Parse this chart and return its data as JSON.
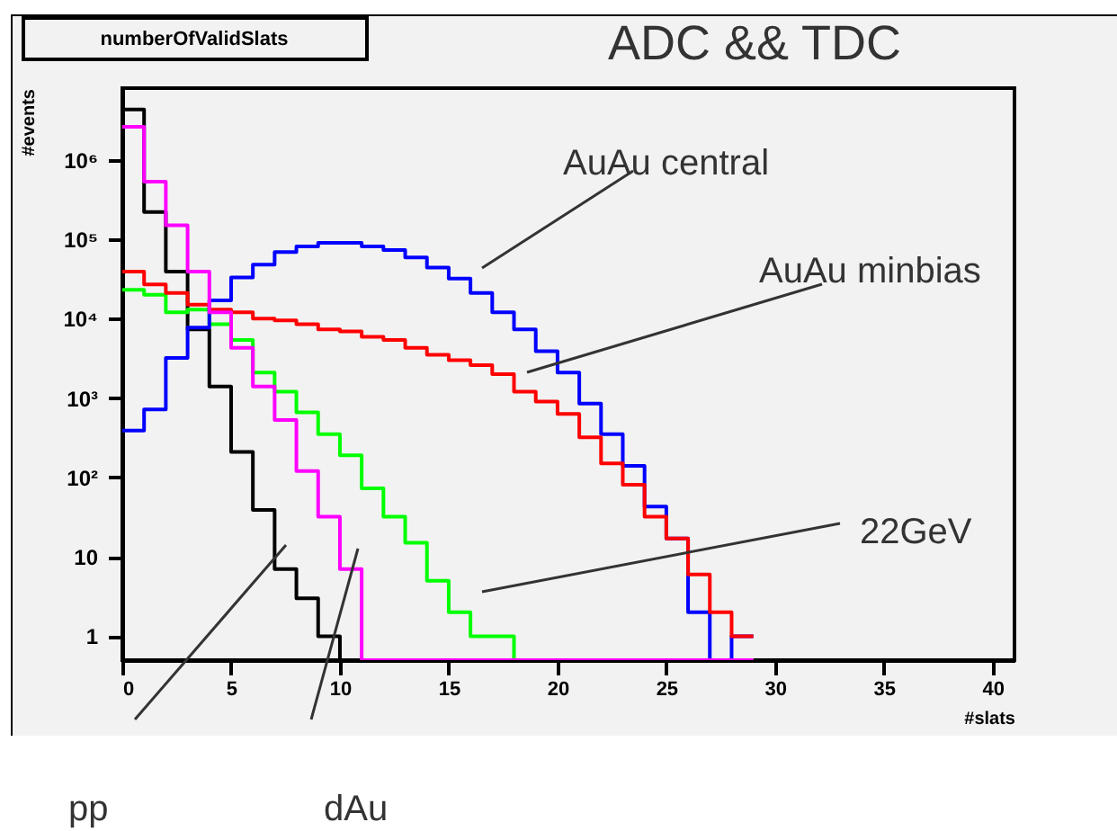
{
  "chart_data": {
    "type": "histogram",
    "title": "numberOfValidSlats",
    "subtitle": "ADC && TDC",
    "xlabel": "#slats",
    "ylabel": "#events",
    "bins": [
      0,
      1,
      2,
      3,
      4,
      5,
      6,
      7,
      8,
      9,
      10,
      11,
      12,
      13,
      14,
      15,
      16,
      17,
      18,
      19,
      20,
      21,
      22,
      23,
      24,
      25,
      26,
      27,
      28,
      29
    ],
    "series": [
      {
        "color": "#000000",
        "values": [
          4300000,
          220000,
          39000,
          7300,
          1400,
          210,
          39,
          7,
          3,
          1,
          null,
          null,
          null,
          null,
          null,
          null,
          null,
          null,
          null,
          null,
          null,
          null,
          null,
          null,
          null,
          null,
          null,
          null,
          null
        ]
      },
      {
        "color": "#00ff00",
        "values": [
          23000,
          20000,
          12000,
          13000,
          8500,
          5400,
          2100,
          1200,
          660,
          350,
          190,
          73,
          32,
          15,
          5,
          2,
          1,
          1,
          null,
          null,
          null,
          null,
          null,
          null,
          null,
          null,
          null,
          null,
          null
        ]
      },
      {
        "color": "#0000ff",
        "values": [
          390,
          720,
          3200,
          7700,
          17000,
          33000,
          48000,
          69000,
          81000,
          90000,
          90000,
          81000,
          73000,
          59000,
          44000,
          32000,
          21000,
          12000,
          7300,
          3900,
          2100,
          850,
          350,
          140,
          43,
          17,
          2,
          null,
          1
        ]
      },
      {
        "color": "#ff0000",
        "values": [
          39000,
          27000,
          21000,
          15000,
          13000,
          12000,
          10000,
          9500,
          8500,
          7300,
          6900,
          5900,
          5400,
          4300,
          3500,
          3000,
          2600,
          2000,
          1200,
          900,
          630,
          320,
          150,
          81,
          32,
          17,
          6,
          2,
          1
        ]
      },
      {
        "color": "#ff00ff",
        "values": [
          2600000,
          530000,
          150000,
          39000,
          12000,
          4300,
          1400,
          530,
          120,
          32,
          7,
          null,
          null,
          null,
          null,
          null,
          null,
          null,
          null,
          null,
          null,
          null,
          null,
          null,
          null,
          null,
          null,
          null,
          null
        ]
      }
    ],
    "xlim": [
      0,
      41
    ],
    "xticks": [
      0,
      5,
      10,
      15,
      20,
      25,
      30,
      35,
      40
    ],
    "ylim": [
      0.5,
      8000000
    ],
    "yticks": [
      1,
      10,
      {
        "value": 100,
        "label": "10²"
      },
      {
        "value": 1000,
        "label": "10³"
      },
      {
        "value": 10000,
        "label": "10⁴"
      },
      {
        "value": 100000,
        "label": "10⁵"
      },
      {
        "value": 1000000,
        "label": "10⁶"
      }
    ],
    "log": "y",
    "annotations": [
      "AuAu central",
      "AuAu minbias",
      "22GeV",
      "pp",
      "dAu"
    ]
  }
}
